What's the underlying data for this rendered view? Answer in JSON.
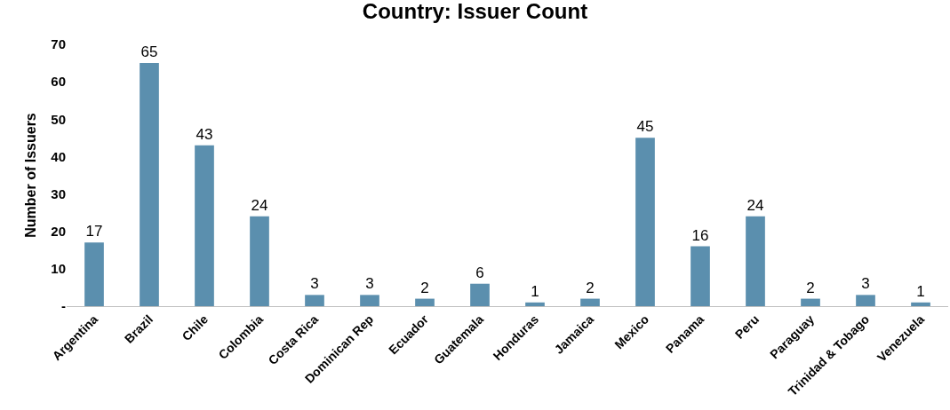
{
  "chart_data": {
    "type": "bar",
    "title": "Country: Issuer Count",
    "ylabel": "Number of Issuers",
    "categories": [
      "Argentina",
      "Brazil",
      "Chile",
      "Colombia",
      "Costa Rica",
      "Dominican Rep",
      "Ecuador",
      "Guatemala",
      "Honduras",
      "Jamaica",
      "Mexico",
      "Panama",
      "Peru",
      "Paraguay",
      "Trinidad & Tobago",
      "Venezuela"
    ],
    "values": [
      17,
      65,
      43,
      24,
      3,
      3,
      2,
      6,
      1,
      2,
      45,
      16,
      24,
      2,
      3,
      1
    ],
    "color": "#5b8fae",
    "data_labels": true,
    "ylim": [
      0,
      70
    ],
    "yticks": [
      {
        "value": 0,
        "label": "-"
      },
      10,
      20,
      30,
      40,
      50,
      60,
      70
    ],
    "grid": false
  }
}
